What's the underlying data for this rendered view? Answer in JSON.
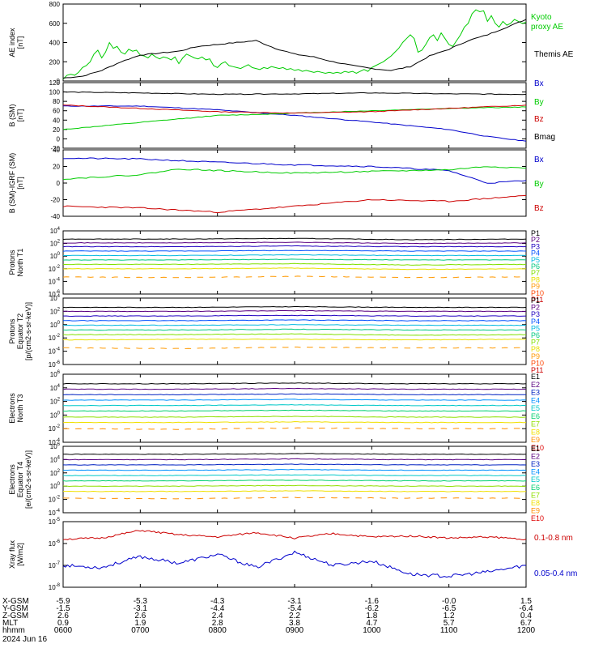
{
  "date_label": "2024 Jun 16",
  "ephemeris": {
    "rows": [
      {
        "label": "X-GSM",
        "values": [
          "-5.9",
          "-5.3",
          "-4.3",
          "-3.1",
          "-1.6",
          "-0.0",
          "1.5"
        ]
      },
      {
        "label": "Y-GSM",
        "values": [
          "-1.5",
          "-3.1",
          "-4.4",
          "-5.4",
          "-6.2",
          "-6.5",
          "-6.4"
        ]
      },
      {
        "label": "Z-GSM",
        "values": [
          "2.6",
          "2.6",
          "2.4",
          "2.2",
          "1.8",
          "1.2",
          "0.4"
        ]
      },
      {
        "label": "MLT",
        "values": [
          "0.9",
          "1.9",
          "2.8",
          "3.8",
          "4.7",
          "5.7",
          "6.7"
        ]
      },
      {
        "label": "hhmm",
        "values": [
          "0600",
          "0700",
          "0800",
          "0900",
          "1000",
          "1100",
          "1200"
        ]
      }
    ]
  },
  "colors": {
    "black": "#000000",
    "green": "#00cc00",
    "red": "#cc0000",
    "blue": "#0000cc",
    "P": [
      "#000000",
      "#5a0080",
      "#2000c0",
      "#0050ff",
      "#00b8e0",
      "#00c880",
      "#80e000",
      "#e8e000",
      "#ff9900",
      "#ff4400",
      "#cc0000"
    ],
    "E": [
      "#000000",
      "#5a0080",
      "#0020c0",
      "#0090ff",
      "#00c8c8",
      "#00d070",
      "#90e000",
      "#f0e000",
      "#ff8c00",
      "#dd0000"
    ]
  },
  "chart_data": [
    {
      "type": "line",
      "ylabel": "AE index [nT]",
      "yticks": [
        "0",
        "200",
        "400",
        "600",
        "800"
      ],
      "ylim": [
        0,
        800
      ],
      "x_range": [
        "0600",
        "1200"
      ],
      "series": [
        {
          "name": "Kyoto proxy AE",
          "color": "#00cc00",
          "x": [
            0,
            0.05,
            0.1,
            0.15,
            0.2,
            0.25,
            0.3,
            0.35,
            0.4,
            0.45,
            0.5,
            0.55,
            0.6,
            0.65,
            0.7,
            0.75,
            0.8,
            0.85,
            0.9,
            0.95,
            1.0,
            1.05,
            1.1,
            1.15,
            1.2,
            1.25,
            1.3,
            1.35,
            1.4,
            1.45,
            1.5,
            1.55,
            1.6,
            1.65,
            1.7,
            1.75,
            1.8,
            1.85,
            1.9,
            1.95,
            2.0,
            2.05,
            2.1,
            2.15,
            2.2,
            2.25,
            2.3,
            2.35,
            2.4,
            2.45,
            2.5,
            2.55,
            2.6,
            2.65,
            2.7,
            2.75,
            2.8,
            2.85,
            2.9,
            2.95,
            3.0,
            3.05,
            3.1,
            3.15,
            3.2,
            3.25,
            3.3,
            3.35,
            3.4,
            3.45,
            3.5,
            3.55,
            3.6,
            3.65,
            3.7,
            3.75,
            3.8,
            3.85,
            3.9,
            3.95,
            4.0,
            4.05,
            4.1,
            4.15,
            4.2,
            4.25,
            4.3,
            4.35,
            4.4,
            4.45,
            4.5,
            4.55,
            4.6,
            4.65,
            4.7,
            4.75,
            4.8,
            4.85,
            4.9,
            4.95,
            5.0,
            5.05,
            5.1,
            5.15,
            5.2,
            5.25,
            5.3,
            5.35,
            5.4,
            5.45,
            5.5,
            5.55,
            5.6,
            5.65,
            5.7,
            5.75,
            5.8,
            5.85,
            5.9,
            5.95,
            6.0
          ],
          "y": [
            20,
            60,
            70,
            60,
            90,
            140,
            160,
            200,
            280,
            320,
            240,
            300,
            400,
            340,
            360,
            300,
            280,
            330,
            310,
            320,
            270,
            260,
            240,
            280,
            250,
            230,
            250,
            240,
            220,
            250,
            180,
            240,
            280,
            260,
            240,
            230,
            250,
            220,
            230,
            160,
            140,
            180,
            200,
            160,
            150,
            140,
            130,
            150,
            170,
            140,
            130,
            120,
            140,
            130,
            150,
            140,
            130,
            140,
            120,
            130,
            110,
            120,
            100,
            110,
            100,
            90,
            100,
            90,
            80,
            90,
            80,
            90,
            80,
            100,
            90,
            100,
            80,
            100,
            120,
            100,
            140,
            160,
            180,
            200,
            230,
            260,
            300,
            340,
            400,
            440,
            480,
            440,
            300,
            320,
            380,
            450,
            480,
            420,
            500,
            440,
            380,
            360,
            420,
            480,
            560,
            600,
            700,
            740,
            720,
            730,
            620,
            680,
            600,
            560,
            620,
            580,
            600,
            640,
            620,
            600,
            610
          ]
        },
        {
          "name": "Themis AE",
          "color": "#000000",
          "x": [
            0,
            0.25,
            0.5,
            0.75,
            1.0,
            1.25,
            1.5,
            1.75,
            2.0,
            2.25,
            2.5,
            2.75,
            3.0,
            3.25,
            3.5,
            3.75,
            4.0,
            4.25,
            4.5,
            4.75,
            5.0,
            5.25,
            5.5,
            5.75,
            6.0
          ],
          "y": [
            30,
            50,
            110,
            200,
            270,
            290,
            310,
            360,
            380,
            400,
            420,
            340,
            280,
            250,
            200,
            160,
            130,
            110,
            150,
            260,
            330,
            420,
            480,
            560,
            640
          ]
        }
      ]
    },
    {
      "type": "line",
      "ylabel": "B (SM) [nT]",
      "yticks": [
        "-20",
        "0",
        "20",
        "40",
        "60",
        "80",
        "100",
        "120"
      ],
      "ylim": [
        -20,
        120
      ],
      "x_range": [
        "0600",
        "1200"
      ],
      "series": [
        {
          "name": "Bx",
          "color": "#0000cc",
          "x": [
            0,
            1,
            2,
            3,
            4,
            4.5,
            5,
            5.5,
            6
          ],
          "y": [
            70,
            70,
            62,
            50,
            36,
            28,
            20,
            5,
            -5
          ]
        },
        {
          "name": "By",
          "color": "#00cc00",
          "x": [
            0,
            1,
            2,
            2.5,
            3,
            4,
            5,
            6
          ],
          "y": [
            20,
            35,
            50,
            52,
            55,
            60,
            65,
            68
          ]
        },
        {
          "name": "Bz",
          "color": "#cc0000",
          "x": [
            0,
            1,
            2,
            3,
            4,
            5,
            6
          ],
          "y": [
            72,
            65,
            58,
            55,
            58,
            65,
            72
          ]
        },
        {
          "name": "Bmag",
          "color": "#000000",
          "x": [
            0,
            1,
            2,
            3,
            4,
            5,
            6
          ],
          "y": [
            100,
            98,
            95,
            96,
            98,
            96,
            95
          ]
        }
      ]
    },
    {
      "type": "line",
      "ylabel": "B (SM)-IGRF (SM) [nT]",
      "yticks": [
        "-40",
        "-20",
        "0",
        "20",
        "40"
      ],
      "ylim": [
        -40,
        40
      ],
      "x_range": [
        "0600",
        "1200"
      ],
      "series": [
        {
          "name": "Bx",
          "color": "#0000cc",
          "x": [
            0,
            1,
            2,
            3,
            4,
            5,
            5.5,
            6
          ],
          "y": [
            30,
            29,
            25,
            22,
            20,
            15,
            0,
            3
          ]
        },
        {
          "name": "By",
          "color": "#00cc00",
          "x": [
            0,
            1,
            1.5,
            2,
            3,
            4,
            5,
            5.5,
            6
          ],
          "y": [
            5,
            10,
            17,
            15,
            12,
            14,
            16,
            20,
            18
          ]
        },
        {
          "name": "Bz",
          "color": "#cc0000",
          "x": [
            0,
            1,
            2,
            3,
            4,
            5,
            6
          ],
          "y": [
            -28,
            -30,
            -35,
            -28,
            -20,
            -22,
            -15
          ]
        }
      ]
    },
    {
      "type": "line",
      "ylabel": "Protons North T1",
      "yticks": [
        "10^-6",
        "10^-4",
        "10^-2",
        "10^0",
        "10^2",
        "10^4"
      ],
      "ylim": [
        -6,
        4
      ],
      "legend": [
        "P1",
        "P2",
        "P3",
        "P4",
        "P5",
        "P6",
        "P7",
        "P8",
        "P9",
        "P10",
        "P11"
      ],
      "x_range": [
        "0600",
        "1200"
      ],
      "series": [
        {
          "name": "P1",
          "log10": [
            2.7,
            2.7,
            2.8,
            2.6,
            2.7
          ]
        },
        {
          "name": "P2",
          "log10": [
            2.1,
            2.1,
            2.2,
            2.0,
            2.1
          ]
        },
        {
          "name": "P3",
          "log10": [
            1.5,
            1.5,
            1.6,
            1.5,
            1.5
          ]
        },
        {
          "name": "P4",
          "log10": [
            0.8,
            0.8,
            0.9,
            0.8,
            0.8
          ]
        },
        {
          "name": "P5",
          "log10": [
            0.1,
            0.1,
            0.2,
            0.1,
            0.1
          ]
        },
        {
          "name": "P6",
          "log10": [
            -0.6,
            -0.6,
            -0.5,
            -0.6,
            -0.6
          ]
        },
        {
          "name": "P7",
          "log10": [
            -1.3,
            -1.3,
            -1.2,
            -1.4,
            -1.3
          ]
        },
        {
          "name": "P8",
          "log10": [
            -2.0,
            -2.0,
            -1.9,
            -2.1,
            -2.0
          ]
        },
        {
          "name": "P9",
          "log10": [
            -3.3,
            -3.4,
            -3.2,
            -3.4,
            -3.3
          ]
        }
      ]
    },
    {
      "type": "line",
      "ylabel": "Protons Equator T2 [p/(cm2-s-sr-keV)]",
      "yticks": [
        "10^-6",
        "10^-4",
        "10^-2",
        "10^0",
        "10^2",
        "10^4"
      ],
      "ylim": [
        -6,
        4
      ],
      "legend": [
        "P1",
        "P2",
        "P3",
        "P4",
        "P5",
        "P6",
        "P7",
        "P8",
        "P9",
        "P10",
        "P11"
      ],
      "x_range": [
        "0600",
        "1200"
      ],
      "series": [
        {
          "name": "P1",
          "log10": [
            2.6,
            2.6,
            2.7,
            2.6,
            2.6
          ]
        },
        {
          "name": "P2",
          "log10": [
            2.0,
            2.0,
            2.1,
            2.0,
            2.0
          ]
        },
        {
          "name": "P3",
          "log10": [
            1.3,
            1.3,
            1.4,
            1.3,
            1.3
          ]
        },
        {
          "name": "P4",
          "log10": [
            0.6,
            0.6,
            0.7,
            0.6,
            0.6
          ]
        },
        {
          "name": "P5",
          "log10": [
            -0.1,
            -0.1,
            0.0,
            -0.1,
            -0.1
          ]
        },
        {
          "name": "P6",
          "log10": [
            -0.8,
            -0.8,
            -0.7,
            -0.8,
            -0.8
          ]
        },
        {
          "name": "P7",
          "log10": [
            -1.5,
            -1.5,
            -1.4,
            -1.6,
            -1.5
          ]
        },
        {
          "name": "P8",
          "log10": [
            -2.3,
            -2.2,
            -2.2,
            -2.3,
            -2.2
          ]
        },
        {
          "name": "P9",
          "log10": [
            -3.5,
            -3.6,
            -3.4,
            -3.5,
            -3.5
          ]
        }
      ]
    },
    {
      "type": "line",
      "ylabel": "Electrons North T3",
      "yticks": [
        "10^-4",
        "10^-2",
        "10^0",
        "10^2",
        "10^4",
        "10^6"
      ],
      "ylim": [
        -4,
        6
      ],
      "legend": [
        "E1",
        "E2",
        "E3",
        "E4",
        "E5",
        "E6",
        "E7",
        "E8",
        "E9",
        "E10"
      ],
      "x_range": [
        "0600",
        "1200"
      ],
      "series": [
        {
          "name": "E1",
          "log10": [
            4.6,
            4.6,
            4.7,
            4.6,
            4.6
          ]
        },
        {
          "name": "E2",
          "log10": [
            3.8,
            3.8,
            3.9,
            3.8,
            3.8
          ]
        },
        {
          "name": "E3",
          "log10": [
            3.0,
            3.0,
            3.1,
            3.0,
            3.0
          ]
        },
        {
          "name": "E4",
          "log10": [
            2.2,
            2.2,
            2.3,
            2.2,
            2.2
          ]
        },
        {
          "name": "E5",
          "log10": [
            1.4,
            1.4,
            1.5,
            1.4,
            1.4
          ]
        },
        {
          "name": "E6",
          "log10": [
            0.6,
            0.6,
            0.7,
            0.6,
            0.6
          ]
        },
        {
          "name": "E7",
          "log10": [
            -0.3,
            -0.3,
            -0.2,
            -0.3,
            -0.3
          ]
        },
        {
          "name": "E8",
          "log10": [
            -1.1,
            -1.1,
            -1.0,
            -1.1,
            -1.1
          ]
        },
        {
          "name": "E9",
          "log10": [
            -2.0,
            -2.1,
            -1.9,
            -2.0,
            -2.0
          ]
        }
      ]
    },
    {
      "type": "line",
      "ylabel": "Electrons Equator T4 [e/(cm2-s-sr-keV)]",
      "yticks": [
        "10^-4",
        "10^-2",
        "10^0",
        "10^2",
        "10^4",
        "10^6"
      ],
      "ylim": [
        -4,
        6
      ],
      "legend": [
        "E1",
        "E2",
        "E3",
        "E4",
        "E5",
        "E6",
        "E7",
        "E8",
        "E9",
        "E10"
      ],
      "x_range": [
        "0600",
        "1200"
      ],
      "series": [
        {
          "name": "E1",
          "log10": [
            4.8,
            4.8,
            4.9,
            4.8,
            4.8
          ]
        },
        {
          "name": "E2",
          "log10": [
            4.0,
            4.0,
            4.1,
            4.0,
            4.0
          ]
        },
        {
          "name": "E3",
          "log10": [
            3.2,
            3.2,
            3.3,
            3.2,
            3.2
          ]
        },
        {
          "name": "E4",
          "log10": [
            2.4,
            2.4,
            2.5,
            2.4,
            2.4
          ]
        },
        {
          "name": "E5",
          "log10": [
            1.6,
            1.6,
            1.7,
            1.6,
            1.6
          ]
        },
        {
          "name": "E6",
          "log10": [
            0.8,
            0.8,
            0.9,
            0.8,
            0.8
          ]
        },
        {
          "name": "E7",
          "log10": [
            0.0,
            0.0,
            0.1,
            0.0,
            0.0
          ]
        },
        {
          "name": "E8",
          "log10": [
            -0.8,
            -0.8,
            -0.7,
            -0.8,
            -0.8
          ]
        },
        {
          "name": "E9",
          "log10": [
            -1.8,
            -1.9,
            -1.7,
            -1.8,
            -1.8
          ]
        }
      ]
    },
    {
      "type": "line",
      "ylabel": "Xray flux [W/m^2]",
      "yticks": [
        "10^-8",
        "10^-7",
        "10^-6",
        "10^-5"
      ],
      "ylim": [
        -8,
        -5
      ],
      "x_range": [
        "0600",
        "1200"
      ],
      "series": [
        {
          "name": "0.1-0.8 nm",
          "color": "#cc0000",
          "log10": [
            -5.8,
            -5.75,
            -5.4,
            -5.6,
            -5.7,
            -5.5,
            -5.75,
            -5.55,
            -5.7,
            -5.65,
            -5.75,
            -5.7,
            -5.8
          ]
        },
        {
          "name": "0.05-0.4 nm",
          "color": "#0000cc",
          "log10": [
            -7.0,
            -7.1,
            -6.6,
            -6.9,
            -6.5,
            -7.1,
            -6.4,
            -7.0,
            -6.8,
            -7.4,
            -7.5,
            -7.3,
            -7.0
          ]
        }
      ]
    }
  ]
}
